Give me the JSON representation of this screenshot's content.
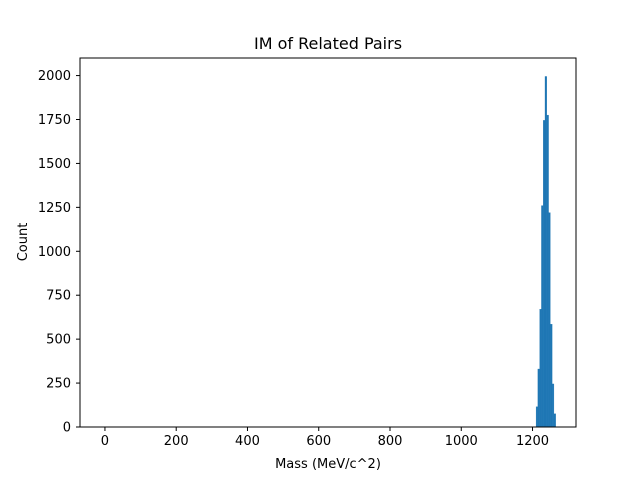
{
  "chart_data": {
    "type": "bar",
    "title": "IM of Related Pairs",
    "xlabel": "Mass (MeV/c^2)",
    "ylabel": "Count",
    "xlim": [
      -70,
      1322
    ],
    "ylim": [
      0,
      2100
    ],
    "xticks": [
      0,
      200,
      400,
      600,
      800,
      1000,
      1200
    ],
    "yticks": [
      0,
      250,
      500,
      750,
      1000,
      1250,
      1500,
      1750,
      2000
    ],
    "grid": false,
    "color": "#1f77b4",
    "bin_width": 5,
    "bins": [
      {
        "x": 1207.5,
        "count": 0
      },
      {
        "x": 1212.5,
        "count": 115
      },
      {
        "x": 1217.5,
        "count": 330
      },
      {
        "x": 1222.5,
        "count": 670
      },
      {
        "x": 1227.5,
        "count": 1260
      },
      {
        "x": 1232.5,
        "count": 1745
      },
      {
        "x": 1237.5,
        "count": 1995
      },
      {
        "x": 1242.5,
        "count": 1775
      },
      {
        "x": 1247.5,
        "count": 1220
      },
      {
        "x": 1252.5,
        "count": 585
      },
      {
        "x": 1257.5,
        "count": 245
      },
      {
        "x": 1262.5,
        "count": 75
      }
    ]
  }
}
